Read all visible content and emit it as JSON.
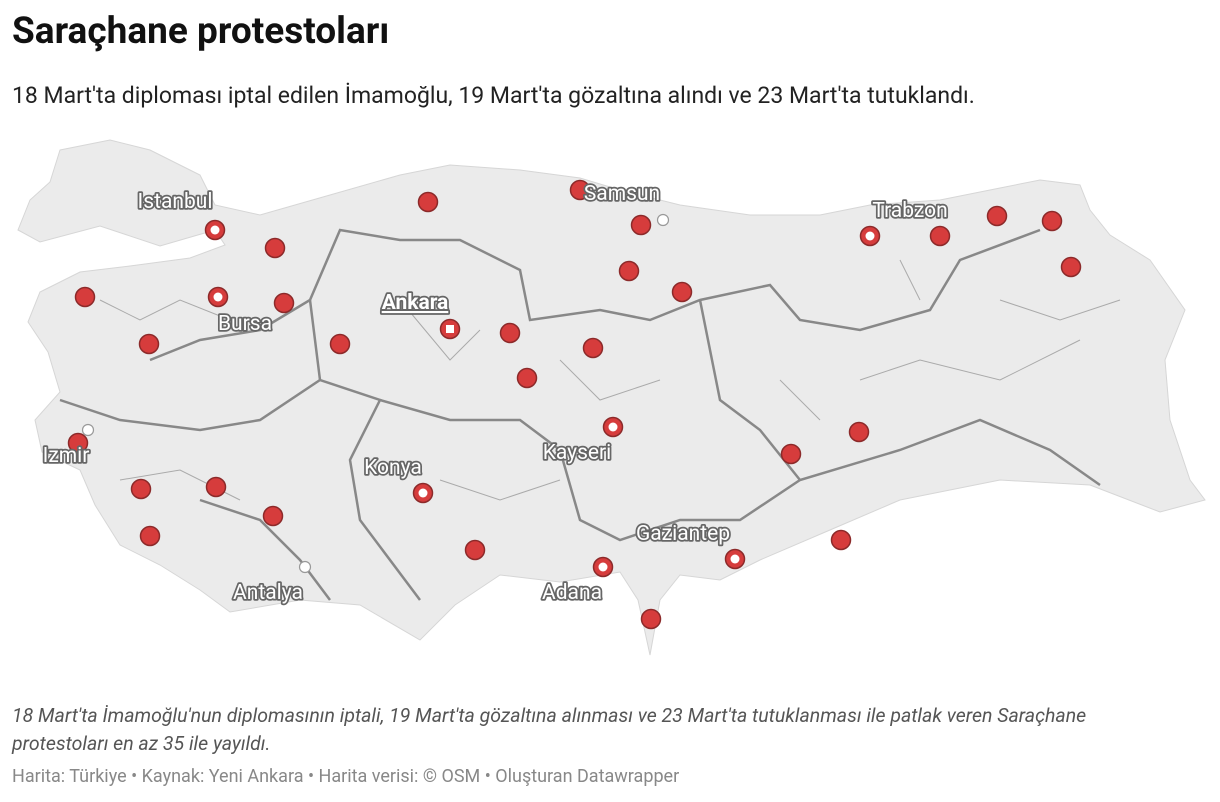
{
  "header": {
    "title": "Saraçhane protestoları",
    "subtitle": "18 Mart'ta diploması iptal edilen İmamoğlu, 19 Mart'ta gözaltına alındı ve 23 Mart'ta tutuklandı."
  },
  "map": {
    "labels": [
      "Istanbul",
      "Samsun",
      "Trabzon",
      "Ankara",
      "Bursa",
      "Izmir",
      "Kayseri",
      "Konya",
      "Gaziantep",
      "Antalya",
      "Adana"
    ]
  },
  "footer": {
    "note": "18 Mart'ta İmamoğlu'nun diplomasının iptali, 19 Mart'ta gözaltına alınması ve 23 Mart'ta tutuklanması ile patlak veren Saraçhane protestoları en az 35 ile yayıldı.",
    "source": "Harita: Türkiye • Kaynak: Yeni Ankara • Harita verisi: © OSM  • Oluşturan Datawrapper"
  }
}
